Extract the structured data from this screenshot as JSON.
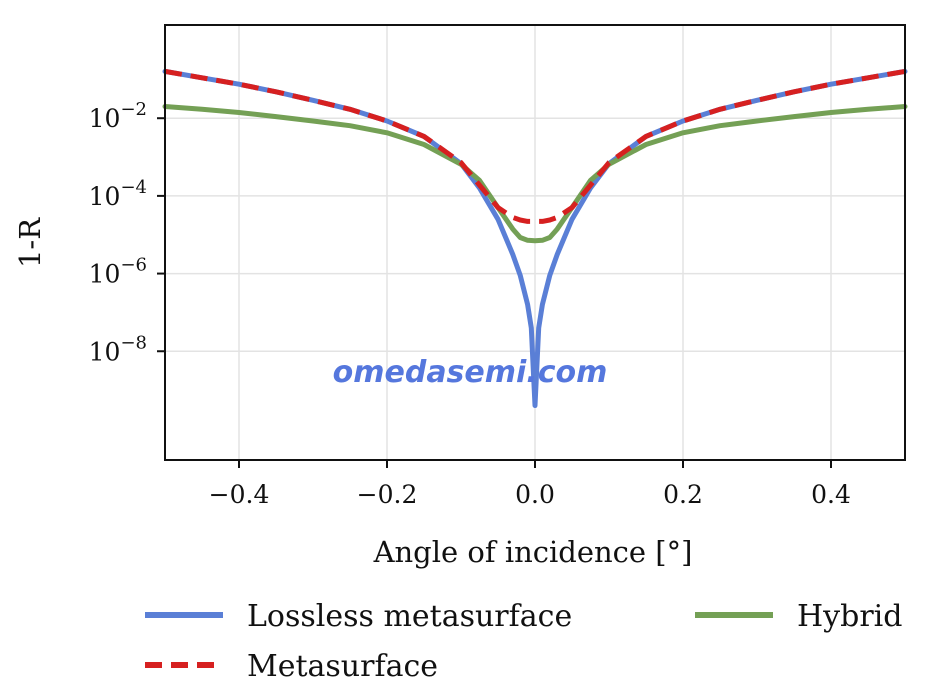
{
  "chart_data": {
    "type": "line",
    "title": "",
    "xlabel": "Angle of incidence [°]",
    "ylabel": "1-R",
    "xlim": [
      -0.5,
      0.5
    ],
    "ylim_log10": [
      -10.8,
      0.4
    ],
    "y_scale": "log",
    "grid": true,
    "legend_placement": "bottom",
    "x_ticks": [
      {
        "value": -0.4,
        "label": "−0.4"
      },
      {
        "value": -0.2,
        "label": "−0.2"
      },
      {
        "value": 0.0,
        "label": "0.0"
      },
      {
        "value": 0.2,
        "label": "0.2"
      },
      {
        "value": 0.4,
        "label": "0.4"
      }
    ],
    "y_ticks": [
      {
        "value": 0.01,
        "base": "10",
        "exp": "−2"
      },
      {
        "value": 0.0001,
        "base": "10",
        "exp": "−4"
      },
      {
        "value": 1e-06,
        "base": "10",
        "exp": "−6"
      },
      {
        "value": 1e-08,
        "base": "10",
        "exp": "−8"
      }
    ],
    "series": [
      {
        "name": "Lossless metasurface",
        "color": "#5a7fd6",
        "style": "solid",
        "x": [
          -0.5,
          -0.45,
          -0.4,
          -0.35,
          -0.3,
          -0.25,
          -0.2,
          -0.15,
          -0.1,
          -0.075,
          -0.05,
          -0.03,
          -0.02,
          -0.01,
          -0.005,
          0.0,
          0.005,
          0.01,
          0.02,
          0.03,
          0.05,
          0.075,
          0.1,
          0.15,
          0.2,
          0.25,
          0.3,
          0.35,
          0.4,
          0.45,
          0.5
        ],
        "y": [
          0.16,
          0.11,
          0.075,
          0.048,
          0.029,
          0.017,
          0.0085,
          0.0034,
          0.00068,
          0.00016,
          2.5e-05,
          3.1e-06,
          9e-07,
          1.6e-07,
          4e-08,
          4e-10,
          4e-08,
          1.6e-07,
          9e-07,
          3.1e-06,
          2.5e-05,
          0.00016,
          0.00068,
          0.0034,
          0.0085,
          0.017,
          0.029,
          0.048,
          0.075,
          0.11,
          0.16
        ]
      },
      {
        "name": "Metasurface",
        "color": "#d62020",
        "style": "dashed",
        "x": [
          -0.5,
          -0.45,
          -0.4,
          -0.35,
          -0.3,
          -0.25,
          -0.2,
          -0.15,
          -0.1,
          -0.075,
          -0.05,
          -0.03,
          -0.02,
          -0.01,
          0.0,
          0.01,
          0.02,
          0.03,
          0.05,
          0.075,
          0.1,
          0.15,
          0.2,
          0.25,
          0.3,
          0.35,
          0.4,
          0.45,
          0.5
        ],
        "y": [
          0.16,
          0.11,
          0.075,
          0.048,
          0.029,
          0.017,
          0.0085,
          0.0034,
          0.00072,
          0.00019,
          5e-05,
          2.8e-05,
          2.4e-05,
          2.2e-05,
          2.2e-05,
          2.2e-05,
          2.4e-05,
          2.8e-05,
          5e-05,
          0.00019,
          0.00072,
          0.0034,
          0.0085,
          0.017,
          0.029,
          0.048,
          0.075,
          0.11,
          0.16
        ]
      },
      {
        "name": "Hybrid",
        "color": "#74a055",
        "style": "solid",
        "x": [
          -0.5,
          -0.45,
          -0.4,
          -0.35,
          -0.3,
          -0.25,
          -0.2,
          -0.15,
          -0.1,
          -0.075,
          -0.05,
          -0.03,
          -0.02,
          -0.01,
          0.0,
          0.01,
          0.02,
          0.03,
          0.05,
          0.075,
          0.1,
          0.15,
          0.2,
          0.25,
          0.3,
          0.35,
          0.4,
          0.45,
          0.5
        ],
        "y": [
          0.02,
          0.017,
          0.014,
          0.011,
          0.0085,
          0.0064,
          0.0042,
          0.0021,
          0.00065,
          0.00025,
          5e-05,
          1.4e-05,
          8.5e-06,
          7.2e-06,
          7e-06,
          7.2e-06,
          8.5e-06,
          1.4e-05,
          5e-05,
          0.00025,
          0.00065,
          0.0021,
          0.0042,
          0.0064,
          0.0085,
          0.011,
          0.014,
          0.017,
          0.02
        ]
      }
    ],
    "annotations": [
      "omedasemi.com"
    ]
  },
  "legend_layout": [
    {
      "series_index": 0
    },
    {
      "series_index": 2
    },
    {
      "series_index": 1
    }
  ]
}
